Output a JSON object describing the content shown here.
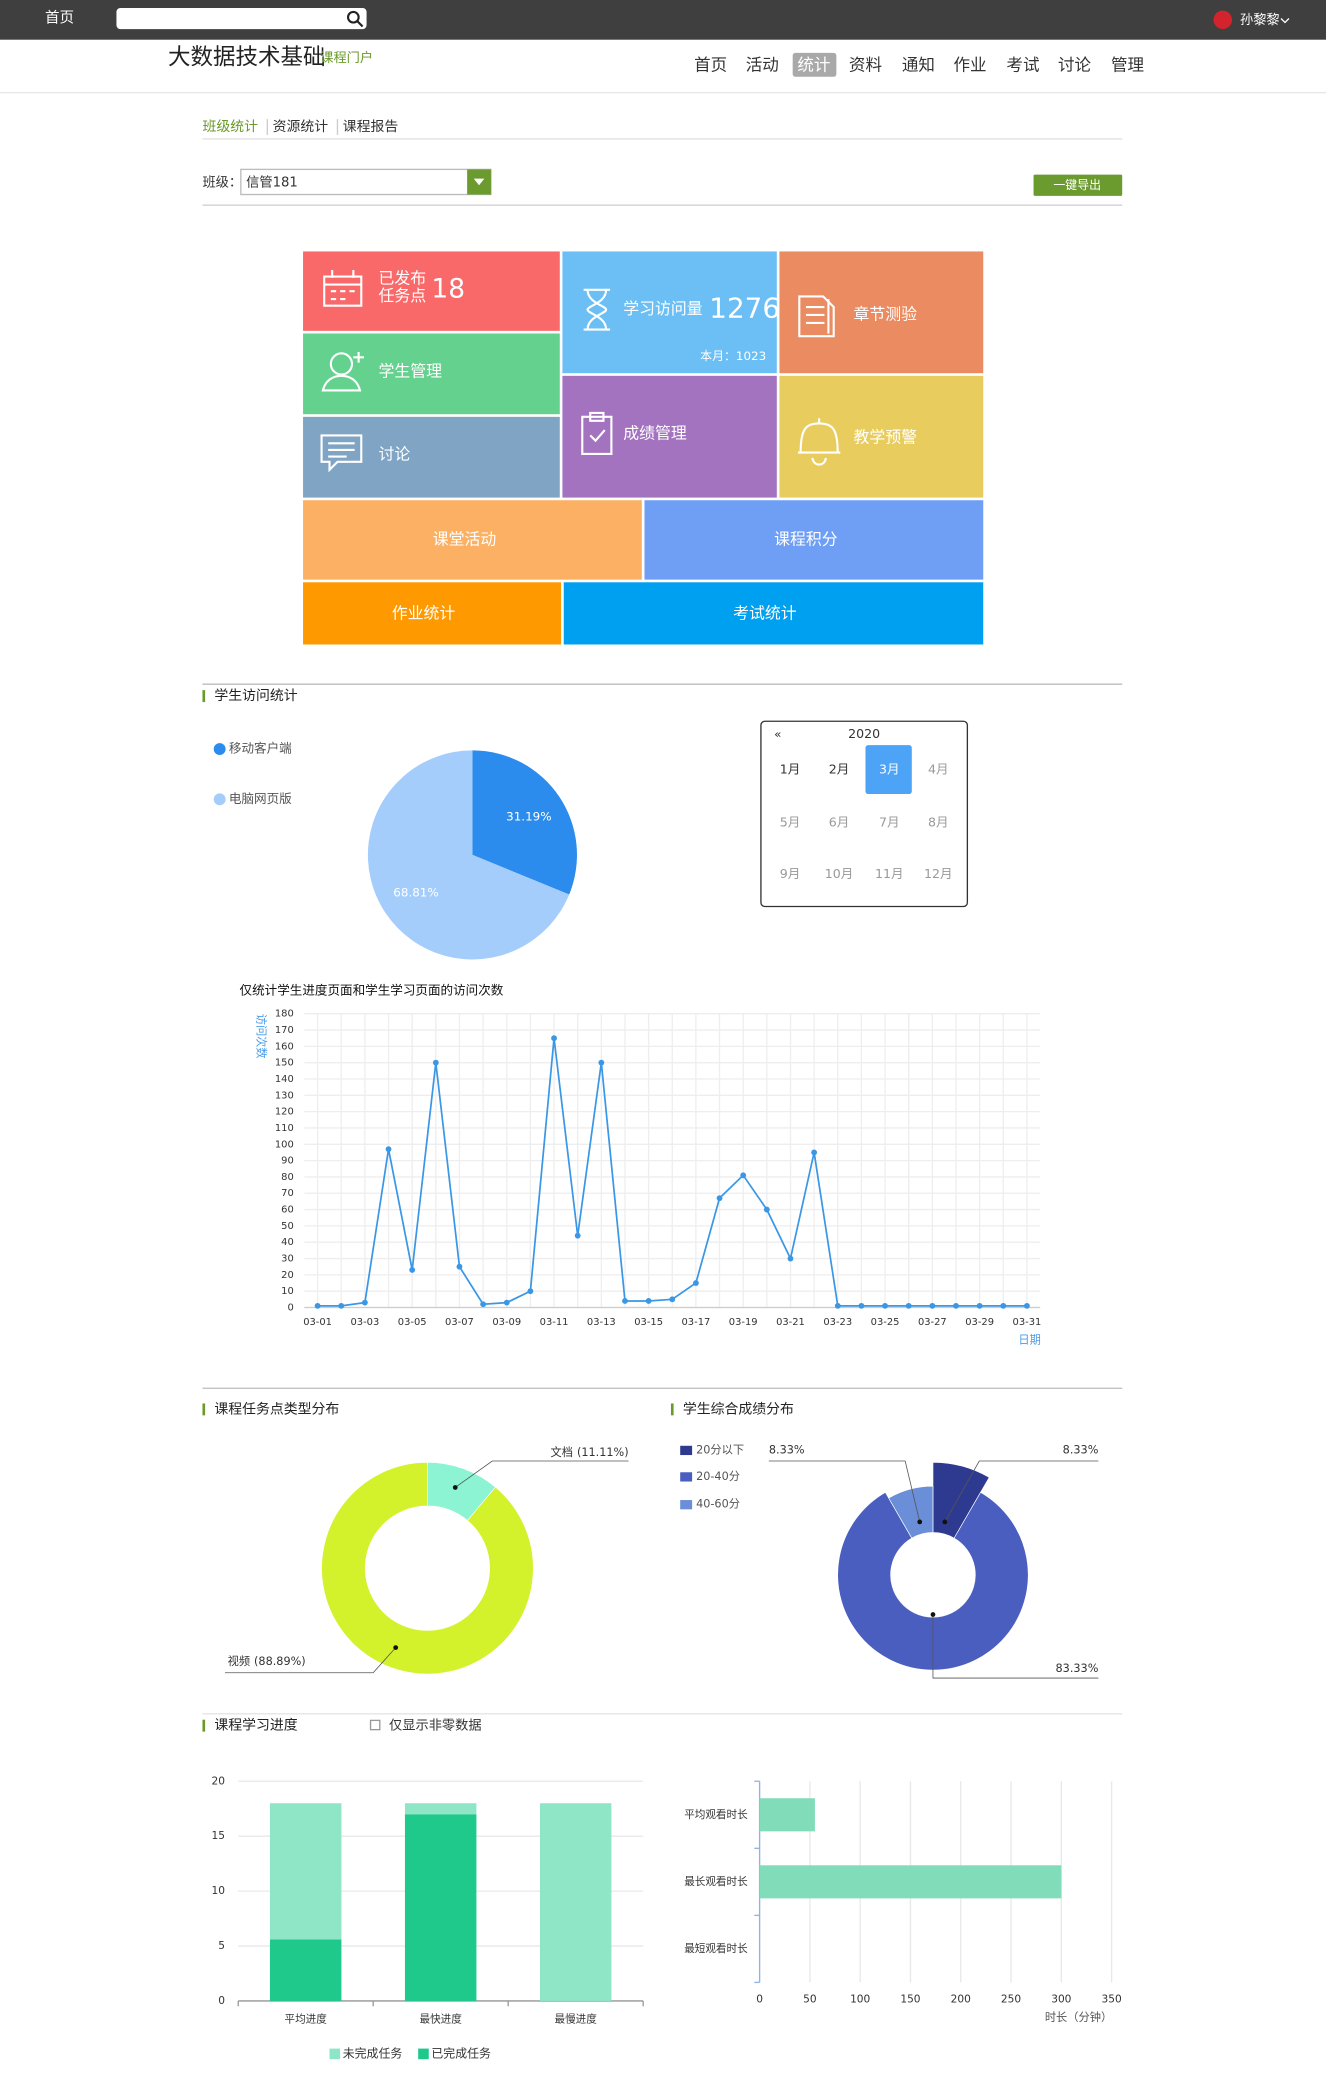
{
  "topbar": {
    "home": "首页",
    "user": "孙黎黎"
  },
  "header": {
    "title": "大数据技术基础",
    "subtitle": "课程门户",
    "nav": [
      "首页",
      "活动",
      "统计",
      "资料",
      "通知",
      "作业",
      "考试",
      "讨论",
      "管理"
    ]
  },
  "tabs": [
    "班级统计",
    "资源统计",
    "课程报告"
  ],
  "filter": {
    "label": "班级：",
    "value": "信管181",
    "export": "一键导出"
  },
  "tiles": [
    {
      "label": "已发布",
      "label2": "任务点",
      "value": 18
    },
    {
      "label": "学习访问量",
      "value": 1276,
      "month_label": "本月：",
      "month_value": 1023
    },
    {
      "label": "章节测验"
    },
    {
      "label": "学生管理"
    },
    {
      "label": "讨论"
    },
    {
      "label": "成绩管理"
    },
    {
      "label": "教学预警"
    },
    {
      "label": "课堂活动"
    },
    {
      "label": "课程积分"
    },
    {
      "label": "作业统计"
    },
    {
      "label": "考试统计"
    }
  ],
  "calendar": {
    "prev": "«",
    "year": 2020,
    "months": [
      "1月",
      "2月",
      "3月",
      "4月",
      "5月",
      "6月",
      "7月",
      "8月",
      "9月",
      "10月",
      "11月",
      "12月"
    ]
  },
  "options": {
    "nonzero": "仅显示非零数据"
  },
  "chart_data": [
    {
      "type": "pie",
      "title": "学生访问统计",
      "categories": [
        "移动客户端",
        "电脑网页版"
      ],
      "values": [
        31.19,
        68.81
      ],
      "value_labels": [
        "31.19%",
        "68.81%"
      ],
      "colors": [
        "#2b8ced",
        "#a4cdfb"
      ]
    },
    {
      "type": "line",
      "title": "仅统计学生进度页面和学生学习页面的访问次数",
      "y_label": "访问次数",
      "x_label": "日期",
      "categories": [
        "03-01",
        null,
        "03-03",
        null,
        "03-05",
        null,
        "03-07",
        null,
        "03-09",
        null,
        "03-11",
        null,
        "03-13",
        null,
        "03-15",
        null,
        "03-17",
        null,
        "03-19",
        null,
        "03-21",
        null,
        "03-23",
        null,
        "03-25",
        null,
        "03-27",
        null,
        "03-29",
        null,
        "03-31"
      ],
      "values": [
        1,
        1,
        3,
        97,
        23,
        150,
        25,
        2,
        3,
        10,
        165,
        44,
        150,
        4,
        4,
        5,
        15,
        67,
        81,
        60,
        30,
        95,
        1,
        1,
        1,
        1,
        1,
        1,
        1,
        1,
        1
      ],
      "color": "#3a97e6",
      "ylim": [
        0,
        180
      ],
      "yticks": [
        0,
        10,
        20,
        30,
        40,
        50,
        60,
        70,
        80,
        90,
        100,
        110,
        120,
        130,
        140,
        150,
        160,
        170,
        180
      ],
      "grid": true
    },
    {
      "type": "donut",
      "title": "课程任务点类型分布",
      "categories": [
        "文档",
        "视频"
      ],
      "values": [
        11.11,
        88.89
      ],
      "value_labels": [
        "(11.11%)",
        "(88.89%)"
      ],
      "colors": [
        "#8df4d3",
        "#d3f22b"
      ]
    },
    {
      "type": "donut",
      "title": "学生综合成绩分布",
      "categories": [
        "20分以下",
        "20-40分",
        "40-60分"
      ],
      "values": [
        8.33,
        83.33,
        8.33
      ],
      "value_labels": [
        "8.33%",
        "83.33%",
        "8.33%"
      ],
      "colors": [
        "#2d3a8f",
        "#4a5ec0",
        "#6a8ed8"
      ]
    },
    {
      "type": "bar",
      "stacked": true,
      "title": "课程学习进度",
      "categories": [
        "平均进度",
        "最快进度",
        "最慢进度"
      ],
      "series": [
        {
          "name": "已完成任务",
          "color": "#1ec98b",
          "values": [
            5.6,
            17,
            0
          ]
        },
        {
          "name": "未完成任务",
          "color": "#8ee6c6",
          "values": [
            12.4,
            1,
            18
          ]
        }
      ],
      "ylim": [
        0,
        20
      ],
      "yticks": [
        0,
        5,
        10,
        15,
        20
      ],
      "grid": true
    },
    {
      "type": "bar",
      "horizontal": true,
      "categories": [
        "平均观看时长",
        "最长观看时长",
        "最短观看时长"
      ],
      "values": [
        55,
        300,
        0
      ],
      "color": "#80dcb9",
      "x_label": "时长（分钟）",
      "xlim": [
        0,
        350
      ],
      "xticks": [
        0,
        50,
        100,
        150,
        200,
        250,
        300,
        350
      ],
      "grid": true
    }
  ]
}
